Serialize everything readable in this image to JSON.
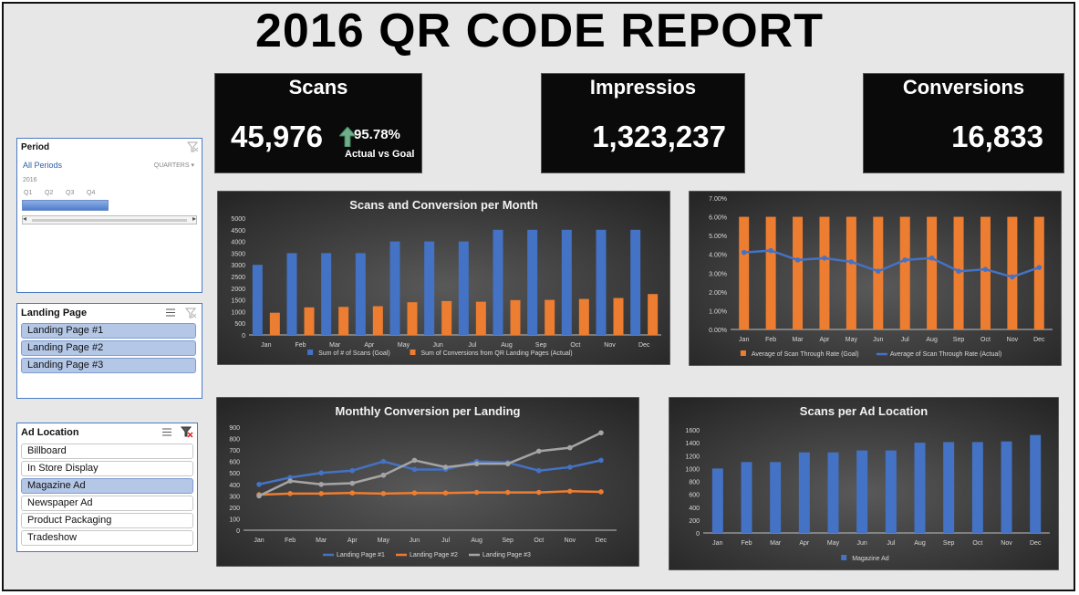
{
  "title": "2016 QR CODE REPORT",
  "kpis": {
    "scans": {
      "title": "Scans",
      "value": "45,976",
      "pct": "95.78%",
      "note": "Actual vs Goal"
    },
    "impressions": {
      "title": "Impressios",
      "value": "1,323,237"
    },
    "conversions": {
      "title": "Conversions",
      "value": "16,833"
    }
  },
  "period_slicer": {
    "title": "Period",
    "all_periods": "All Periods",
    "level": "QUARTERS",
    "year": "2016",
    "quarters": [
      "Q1",
      "Q2",
      "Q3",
      "Q4"
    ]
  },
  "landing_slicer": {
    "title": "Landing Page",
    "items": [
      "Landing Page #1",
      "Landing Page #2",
      "Landing Page #3"
    ]
  },
  "ad_slicer": {
    "title": "Ad Location",
    "items": [
      "Billboard",
      "In Store Display",
      "Magazine Ad",
      "Newspaper Ad",
      "Product Packaging",
      "Tradeshow"
    ],
    "selected": "Magazine Ad"
  },
  "colors": {
    "blue": "#4472c4",
    "orange": "#ed7d31",
    "gray": "#a5a5a5",
    "chart_bg": "#3a3a3a"
  },
  "chart_data": [
    {
      "type": "bar",
      "title": "Scans and Conversion per Month",
      "categories": [
        "Jan",
        "Feb",
        "Mar",
        "Apr",
        "May",
        "Jun",
        "Jul",
        "Aug",
        "Sep",
        "Oct",
        "Nov",
        "Dec"
      ],
      "series": [
        {
          "name": "Sum of # of Scans (Goal)",
          "values": [
            3000,
            3500,
            3500,
            3500,
            4000,
            4000,
            4000,
            4500,
            4500,
            4500,
            4500,
            4500
          ]
        },
        {
          "name": "Sum of Conversions from QR Landing Pages (Actual)",
          "values": [
            950,
            1180,
            1200,
            1230,
            1400,
            1450,
            1420,
            1490,
            1500,
            1540,
            1580,
            1750
          ]
        }
      ],
      "yticks": [
        "0",
        "500",
        "1000",
        "1500",
        "2000",
        "2500",
        "3000",
        "3500",
        "4000",
        "4500",
        "5000"
      ],
      "ylim": [
        0,
        5000
      ],
      "legend": "bottom"
    },
    {
      "type": "bar+line",
      "title": "",
      "categories": [
        "Jan",
        "Feb",
        "Mar",
        "Apr",
        "May",
        "Jun",
        "Jul",
        "Aug",
        "Sep",
        "Oct",
        "Nov",
        "Dec"
      ],
      "series": [
        {
          "name": "Average of Scan Through Rate (Goal)",
          "values": [
            6,
            6,
            6,
            6,
            6,
            6,
            6,
            6,
            6,
            6,
            6,
            6
          ]
        },
        {
          "name": "Average of Scan Through Rate (Actual)",
          "values": [
            4.1,
            4.2,
            3.7,
            3.8,
            3.6,
            3.1,
            3.7,
            3.8,
            3.1,
            3.2,
            2.8,
            3.3
          ]
        }
      ],
      "yticks": [
        "0.00%",
        "1.00%",
        "2.00%",
        "3.00%",
        "4.00%",
        "5.00%",
        "6.00%",
        "7.00%"
      ],
      "ylim": [
        0,
        7
      ],
      "legend": "bottom"
    },
    {
      "type": "line",
      "title": "Monthly Conversion per Landing",
      "categories": [
        "Jan",
        "Feb",
        "Mar",
        "Apr",
        "May",
        "Jun",
        "Jul",
        "Aug",
        "Sep",
        "Oct",
        "Nov",
        "Dec"
      ],
      "series": [
        {
          "name": "Landing Page #1",
          "values": [
            400,
            460,
            500,
            520,
            600,
            530,
            530,
            600,
            590,
            520,
            550,
            610
          ]
        },
        {
          "name": "Landing Page #2",
          "values": [
            310,
            320,
            320,
            325,
            320,
            325,
            325,
            330,
            330,
            330,
            340,
            335
          ]
        },
        {
          "name": "Landing Page #3",
          "values": [
            300,
            430,
            400,
            410,
            480,
            610,
            550,
            580,
            580,
            690,
            720,
            850
          ]
        }
      ],
      "yticks": [
        "0",
        "100",
        "200",
        "300",
        "400",
        "500",
        "600",
        "700",
        "800",
        "900"
      ],
      "ylim": [
        0,
        900
      ],
      "legend": "bottom"
    },
    {
      "type": "bar",
      "title": "Scans per Ad Location",
      "categories": [
        "Jan",
        "Feb",
        "Mar",
        "Apr",
        "May",
        "Jun",
        "Jul",
        "Aug",
        "Sep",
        "Oct",
        "Nov",
        "Dec"
      ],
      "series": [
        {
          "name": "Magazine Ad",
          "values": [
            1000,
            1100,
            1100,
            1250,
            1250,
            1280,
            1280,
            1400,
            1410,
            1410,
            1420,
            1520
          ]
        }
      ],
      "yticks": [
        "0",
        "200",
        "400",
        "600",
        "800",
        "1000",
        "1200",
        "1400",
        "1600"
      ],
      "ylim": [
        0,
        1600
      ],
      "legend": "bottom"
    }
  ]
}
